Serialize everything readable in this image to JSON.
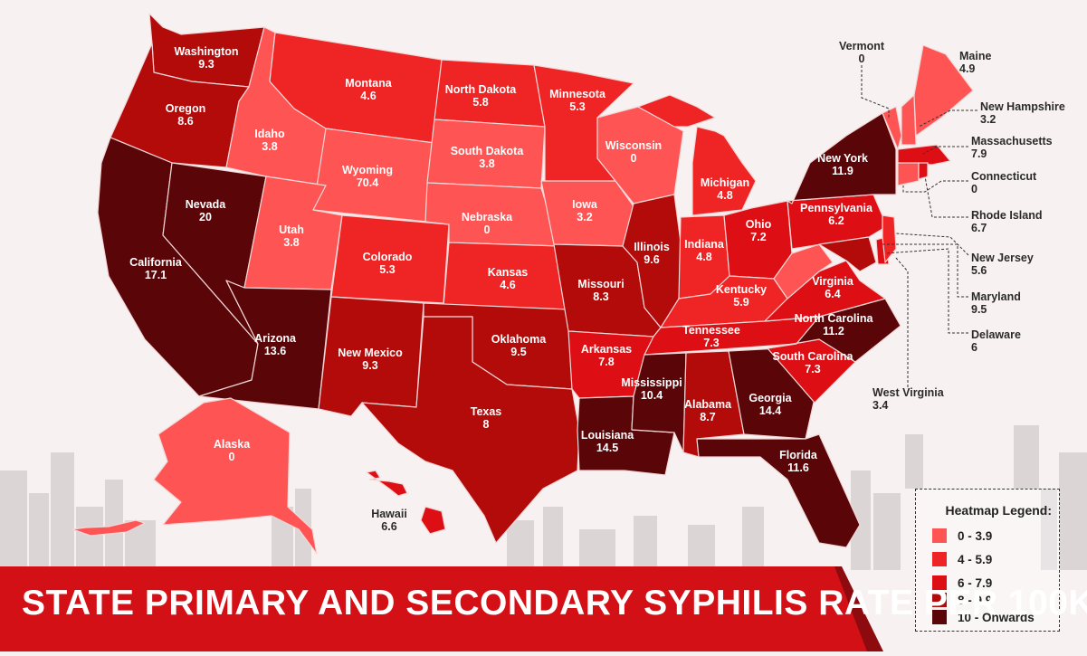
{
  "title": "STATE PRIMARY AND SECONDARY SYPHILIS RATE PER 100K",
  "legend": {
    "heading": "Heatmap Legend:",
    "items": [
      {
        "label": "0 - 3.9",
        "color": "#ff5454"
      },
      {
        "label": "4 - 5.9",
        "color": "#ef2424"
      },
      {
        "label": "6 - 7.9",
        "color": "#de0f14"
      },
      {
        "label": "8 - 9.9",
        "color": "#b30a0a"
      },
      {
        "label": "10 - Onwards",
        "color": "#5a0508"
      }
    ]
  },
  "states": {
    "washington": {
      "name": "Washington",
      "value": "9.3"
    },
    "oregon": {
      "name": "Oregon",
      "value": "8.6"
    },
    "california": {
      "name": "California",
      "value": "17.1"
    },
    "nevada": {
      "name": "Nevada",
      "value": "20"
    },
    "idaho": {
      "name": "Idaho",
      "value": "3.8"
    },
    "montana": {
      "name": "Montana",
      "value": "4.6"
    },
    "wyoming": {
      "name": "Wyoming",
      "value": "70.4"
    },
    "utah": {
      "name": "Utah",
      "value": "3.8"
    },
    "arizona": {
      "name": "Arizona",
      "value": "13.6"
    },
    "colorado": {
      "name": "Colorado",
      "value": "5.3"
    },
    "new_mexico": {
      "name": "New Mexico",
      "value": "9.3"
    },
    "north_dakota": {
      "name": "North Dakota",
      "value": "5.8"
    },
    "south_dakota": {
      "name": "South Dakota",
      "value": "3.8"
    },
    "nebraska": {
      "name": "Nebraska",
      "value": "0"
    },
    "kansas": {
      "name": "Kansas",
      "value": "4.6"
    },
    "oklahoma": {
      "name": "Oklahoma",
      "value": "9.5"
    },
    "texas": {
      "name": "Texas",
      "value": "8"
    },
    "minnesota": {
      "name": "Minnesota",
      "value": "5.3"
    },
    "iowa": {
      "name": "Iowa",
      "value": "3.2"
    },
    "missouri": {
      "name": "Missouri",
      "value": "8.3"
    },
    "arkansas": {
      "name": "Arkansas",
      "value": "7.8"
    },
    "louisiana": {
      "name": "Louisiana",
      "value": "14.5"
    },
    "wisconsin": {
      "name": "Wisconsin",
      "value": "0"
    },
    "illinois": {
      "name": "Illinois",
      "value": "9.6"
    },
    "michigan": {
      "name": "Michigan",
      "value": "4.8"
    },
    "indiana": {
      "name": "Indiana",
      "value": "4.8"
    },
    "ohio": {
      "name": "Ohio",
      "value": "7.2"
    },
    "kentucky": {
      "name": "Kentucky",
      "value": "5.9"
    },
    "tennessee": {
      "name": "Tennessee",
      "value": "7.3"
    },
    "mississippi": {
      "name": "Mississippi",
      "value": "10.4"
    },
    "alabama": {
      "name": "Alabama",
      "value": "8.7"
    },
    "georgia": {
      "name": "Georgia",
      "value": "14.4"
    },
    "florida": {
      "name": "Florida",
      "value": "11.6"
    },
    "south_carolina": {
      "name": "South Carolina",
      "value": "7.3"
    },
    "north_carolina": {
      "name": "North Carolina",
      "value": "11.2"
    },
    "virginia": {
      "name": "Virginia",
      "value": "6.4"
    },
    "west_virginia": {
      "name": "West Virginia",
      "value": "3.4"
    },
    "pennsylvania": {
      "name": "Pennsylvania",
      "value": "6.2"
    },
    "new_york": {
      "name": "New York",
      "value": "11.9"
    },
    "vermont": {
      "name": "Vermont",
      "value": "0"
    },
    "maine": {
      "name": "Maine",
      "value": "4.9"
    },
    "new_hampshire": {
      "name": "New Hampshire",
      "value": "3.2"
    },
    "massachusetts": {
      "name": "Massachusetts",
      "value": "7.9"
    },
    "connecticut": {
      "name": "Connecticut",
      "value": "0"
    },
    "rhode_island": {
      "name": "Rhode Island",
      "value": "6.7"
    },
    "new_jersey": {
      "name": "New Jersey",
      "value": "5.6"
    },
    "maryland": {
      "name": "Maryland",
      "value": "9.5"
    },
    "delaware": {
      "name": "Delaware",
      "value": "6"
    },
    "alaska": {
      "name": "Alaska",
      "value": "0"
    },
    "hawaii": {
      "name": "Hawaii",
      "value": "6.6"
    }
  }
}
